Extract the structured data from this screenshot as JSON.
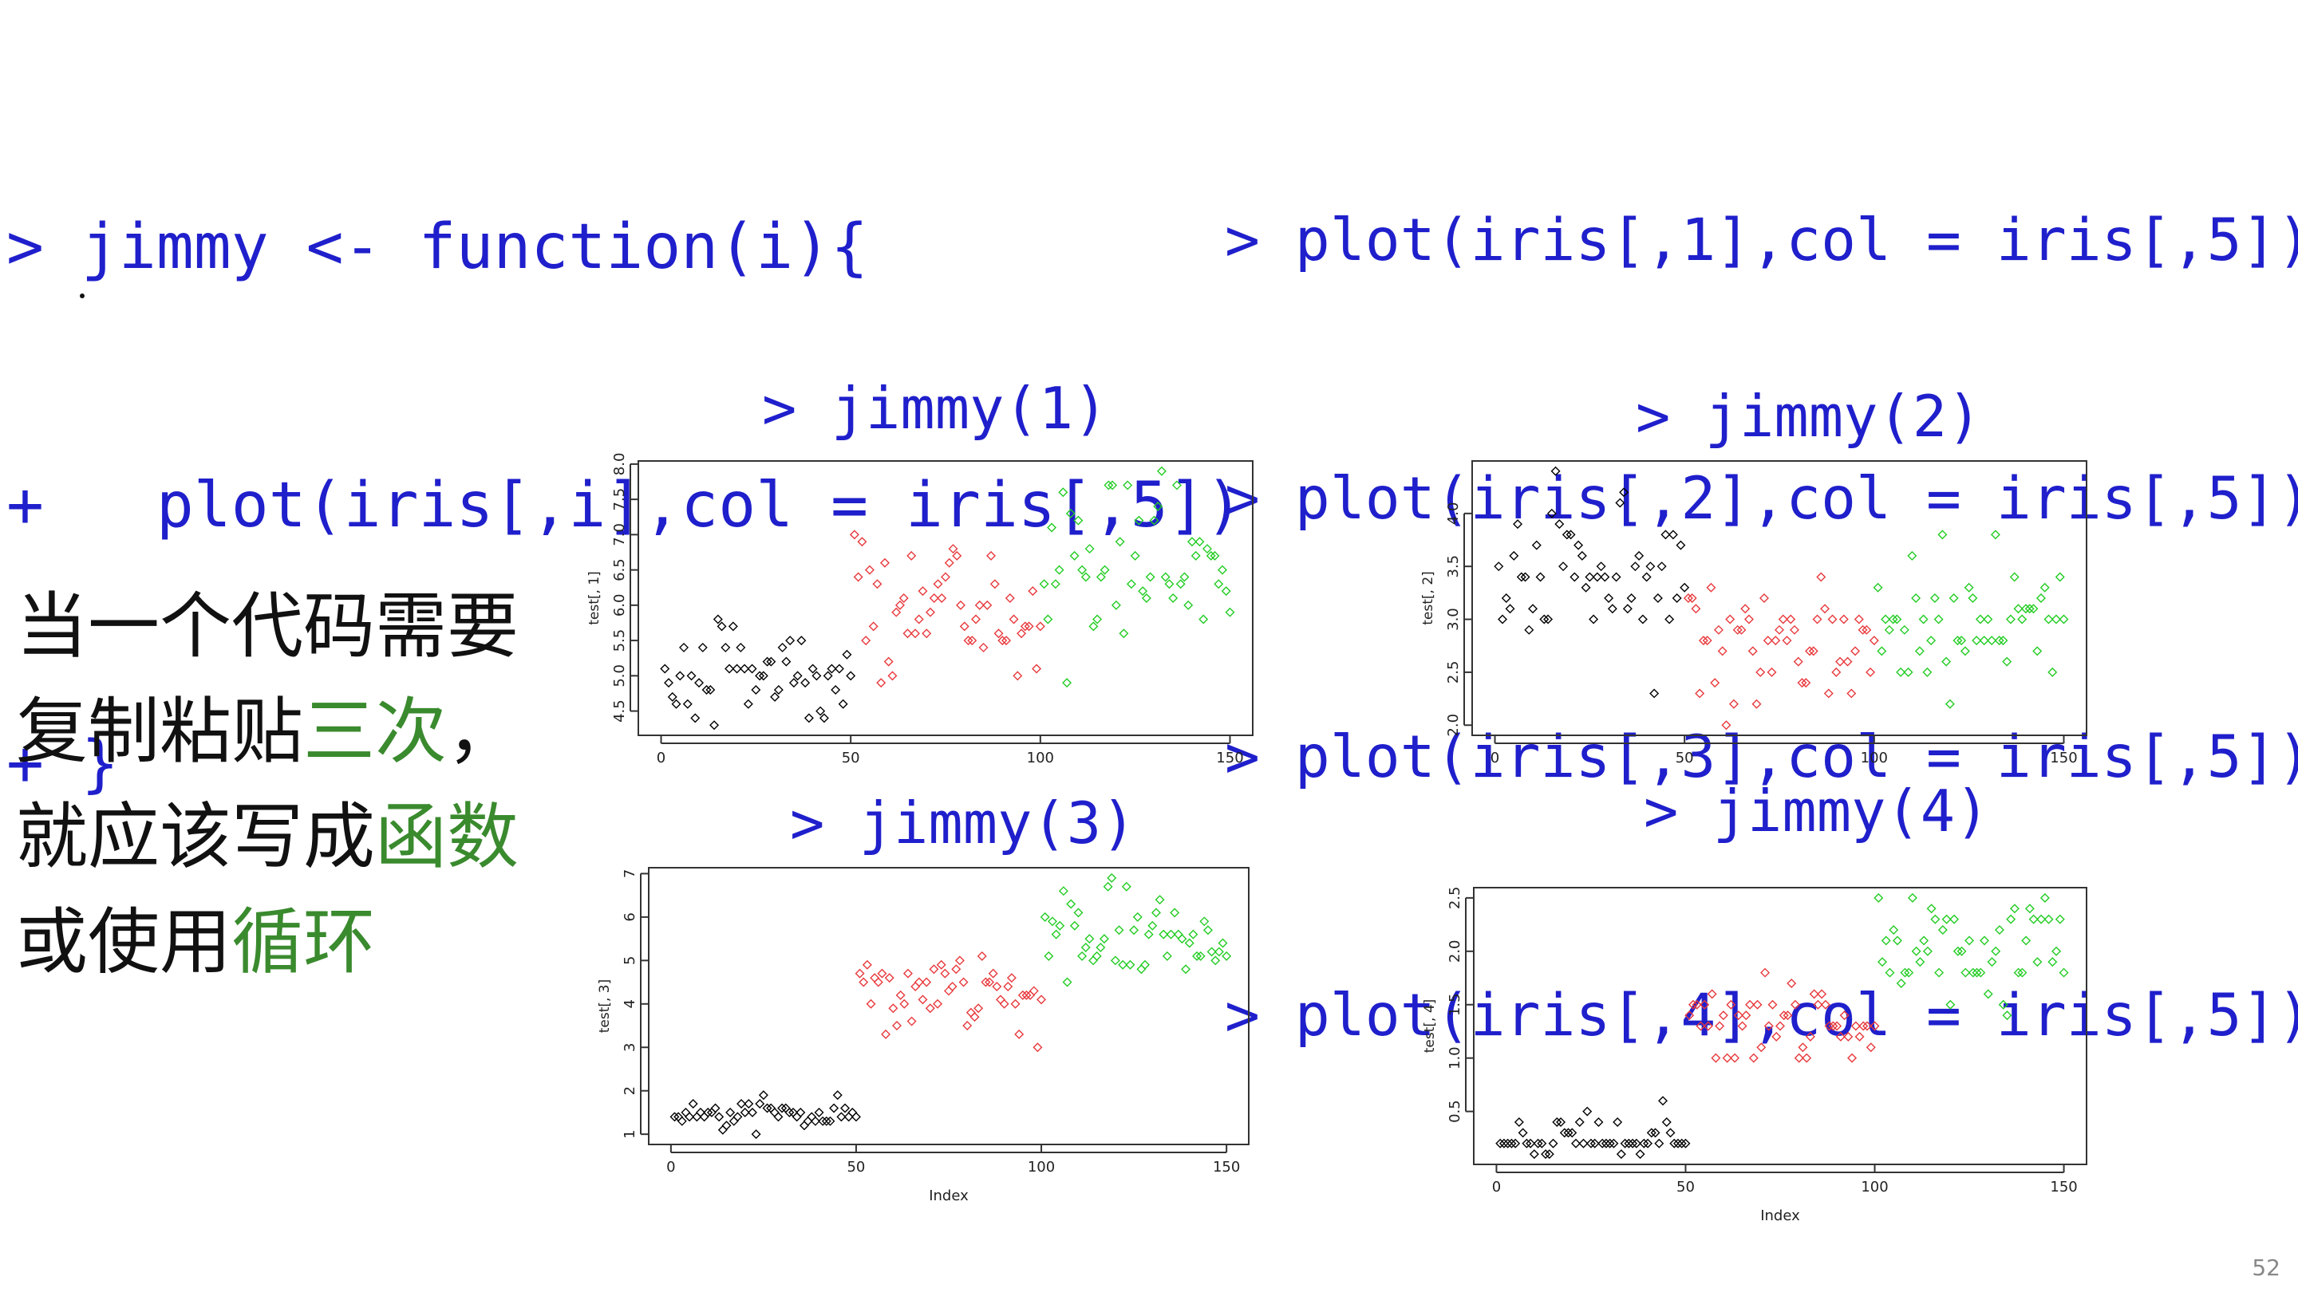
{
  "code_left": {
    "lines": [
      "> jimmy <- function(i){",
      "+   plot(iris[,i],col = iris[,5])",
      "+ }"
    ]
  },
  "code_right": {
    "lines": [
      "> plot(iris[,1],col = iris[,5])",
      "> plot(iris[,2],col = iris[,5])",
      "> plot(iris[,3],col = iris[,5])",
      "> plot(iris[,4],col = iris[,5])"
    ]
  },
  "calls": [
    "> jimmy(1)",
    "> jimmy(2)",
    "> jimmy(3)",
    "> jimmy(4)"
  ],
  "note": {
    "line1": "当一个代码需要",
    "line2_a": "复制粘贴",
    "line2_b": "三次",
    "line2_c": "，",
    "line3_a": "就应该写成",
    "line3_b": "函数",
    "line4_a": "或使用",
    "line4_b": "循环"
  },
  "page_number": "52",
  "colors": {
    "code": "#1f1fcc",
    "highlight": "#3a8a2e",
    "setosa": "#000000",
    "versicolor": "#e8393c",
    "virginica": "#22cc22"
  },
  "chart_data": [
    {
      "type": "scatter",
      "title": "",
      "xlabel": "",
      "ylabel": "test[, 1]",
      "xlim": [
        0,
        150
      ],
      "ylim": [
        4.3,
        7.9
      ],
      "xticks": [
        "0",
        "50",
        "100",
        "150"
      ],
      "yticks": [
        "4.5",
        "5.0",
        "5.5",
        "6.0",
        "6.5",
        "7.0",
        "7.5",
        "8.0"
      ],
      "x_note": "Index 1..150",
      "series": [
        {
          "values": [
            5.1,
            4.9,
            4.7,
            4.6,
            5.0,
            5.4,
            4.6,
            5.0,
            4.4,
            4.9,
            5.4,
            4.8,
            4.8,
            4.3,
            5.8,
            5.7,
            5.4,
            5.1,
            5.7,
            5.1,
            5.4,
            5.1,
            4.6,
            5.1,
            4.8,
            5.0,
            5.0,
            5.2,
            5.2,
            4.7,
            4.8,
            5.4,
            5.2,
            5.5,
            4.9,
            5.0,
            5.5,
            4.9,
            4.4,
            5.1,
            5.0,
            4.5,
            4.4,
            5.0,
            5.1,
            4.8,
            5.1,
            4.6,
            5.3,
            5.0
          ]
        },
        {
          "values": [
            7.0,
            6.4,
            6.9,
            5.5,
            6.5,
            5.7,
            6.3,
            4.9,
            6.6,
            5.2,
            5.0,
            5.9,
            6.0,
            6.1,
            5.6,
            6.7,
            5.6,
            5.8,
            6.2,
            5.6,
            5.9,
            6.1,
            6.3,
            6.1,
            6.4,
            6.6,
            6.8,
            6.7,
            6.0,
            5.7,
            5.5,
            5.5,
            5.8,
            6.0,
            5.4,
            6.0,
            6.7,
            6.3,
            5.6,
            5.5,
            5.5,
            6.1,
            5.8,
            5.0,
            5.6,
            5.7,
            5.7,
            6.2,
            5.1,
            5.7
          ]
        },
        {
          "values": [
            6.3,
            5.8,
            7.1,
            6.3,
            6.5,
            7.6,
            4.9,
            7.3,
            6.7,
            7.2,
            6.5,
            6.4,
            6.8,
            5.7,
            5.8,
            6.4,
            6.5,
            7.7,
            7.7,
            6.0,
            6.9,
            5.6,
            7.7,
            6.3,
            6.7,
            7.2,
            6.2,
            6.1,
            6.4,
            7.2,
            7.4,
            7.9,
            6.4,
            6.3,
            6.1,
            7.7,
            6.3,
            6.4,
            6.0,
            6.9,
            6.7,
            6.9,
            5.8,
            6.8,
            6.7,
            6.7,
            6.3,
            6.5,
            6.2,
            5.9
          ]
        }
      ]
    },
    {
      "type": "scatter",
      "title": "",
      "xlabel": "",
      "ylabel": "test[, 2]",
      "xlim": [
        0,
        150
      ],
      "ylim": [
        2.0,
        4.4
      ],
      "xticks": [
        "0",
        "50",
        "100",
        "150"
      ],
      "yticks": [
        "2.0",
        "2.5",
        "3.0",
        "3.5",
        "4.0"
      ],
      "x_note": "Index 1..150",
      "series": [
        {
          "values": [
            3.5,
            3.0,
            3.2,
            3.1,
            3.6,
            3.9,
            3.4,
            3.4,
            2.9,
            3.1,
            3.7,
            3.4,
            3.0,
            3.0,
            4.0,
            4.4,
            3.9,
            3.5,
            3.8,
            3.8,
            3.4,
            3.7,
            3.6,
            3.3,
            3.4,
            3.0,
            3.4,
            3.5,
            3.4,
            3.2,
            3.1,
            3.4,
            4.1,
            4.2,
            3.1,
            3.2,
            3.5,
            3.6,
            3.0,
            3.4,
            3.5,
            2.3,
            3.2,
            3.5,
            3.8,
            3.0,
            3.8,
            3.2,
            3.7,
            3.3
          ]
        },
        {
          "values": [
            3.2,
            3.2,
            3.1,
            2.3,
            2.8,
            2.8,
            3.3,
            2.4,
            2.9,
            2.7,
            2.0,
            3.0,
            2.2,
            2.9,
            2.9,
            3.1,
            3.0,
            2.7,
            2.2,
            2.5,
            3.2,
            2.8,
            2.5,
            2.8,
            2.9,
            3.0,
            2.8,
            3.0,
            2.9,
            2.6,
            2.4,
            2.4,
            2.7,
            2.7,
            3.0,
            3.4,
            3.1,
            2.3,
            3.0,
            2.5,
            2.6,
            3.0,
            2.6,
            2.3,
            2.7,
            3.0,
            2.9,
            2.9,
            2.5,
            2.8
          ]
        },
        {
          "values": [
            3.3,
            2.7,
            3.0,
            2.9,
            3.0,
            3.0,
            2.5,
            2.9,
            2.5,
            3.6,
            3.2,
            2.7,
            3.0,
            2.5,
            2.8,
            3.2,
            3.0,
            3.8,
            2.6,
            2.2,
            3.2,
            2.8,
            2.8,
            2.7,
            3.3,
            3.2,
            2.8,
            3.0,
            2.8,
            3.0,
            2.8,
            3.8,
            2.8,
            2.8,
            2.6,
            3.0,
            3.4,
            3.1,
            3.0,
            3.1,
            3.1,
            3.1,
            2.7,
            3.2,
            3.3,
            3.0,
            2.5,
            3.0,
            3.4,
            3.0
          ]
        }
      ]
    },
    {
      "type": "scatter",
      "title": "",
      "xlabel": "Index",
      "ylabel": "test[, 3]",
      "xlim": [
        0,
        150
      ],
      "ylim": [
        1.0,
        6.9
      ],
      "xticks": [
        "0",
        "50",
        "100",
        "150"
      ],
      "yticks": [
        "1",
        "2",
        "3",
        "4",
        "5",
        "6",
        "7"
      ],
      "x_note": "Index 1..150",
      "series": [
        {
          "values": [
            1.4,
            1.4,
            1.3,
            1.5,
            1.4,
            1.7,
            1.4,
            1.5,
            1.4,
            1.5,
            1.5,
            1.6,
            1.4,
            1.1,
            1.2,
            1.5,
            1.3,
            1.4,
            1.7,
            1.5,
            1.7,
            1.5,
            1.0,
            1.7,
            1.9,
            1.6,
            1.6,
            1.5,
            1.4,
            1.6,
            1.6,
            1.5,
            1.5,
            1.4,
            1.5,
            1.2,
            1.3,
            1.4,
            1.3,
            1.5,
            1.3,
            1.3,
            1.3,
            1.6,
            1.9,
            1.4,
            1.6,
            1.4,
            1.5,
            1.4
          ]
        },
        {
          "values": [
            4.7,
            4.5,
            4.9,
            4.0,
            4.6,
            4.5,
            4.7,
            3.3,
            4.6,
            3.9,
            3.5,
            4.2,
            4.0,
            4.7,
            3.6,
            4.4,
            4.5,
            4.1,
            4.5,
            3.9,
            4.8,
            4.0,
            4.9,
            4.7,
            4.3,
            4.4,
            4.8,
            5.0,
            4.5,
            3.5,
            3.8,
            3.7,
            3.9,
            5.1,
            4.5,
            4.5,
            4.7,
            4.4,
            4.1,
            4.0,
            4.4,
            4.6,
            4.0,
            3.3,
            4.2,
            4.2,
            4.2,
            4.3,
            3.0,
            4.1
          ]
        },
        {
          "values": [
            6.0,
            5.1,
            5.9,
            5.6,
            5.8,
            6.6,
            4.5,
            6.3,
            5.8,
            6.1,
            5.1,
            5.3,
            5.5,
            5.0,
            5.1,
            5.3,
            5.5,
            6.7,
            6.9,
            5.0,
            5.7,
            4.9,
            6.7,
            4.9,
            5.7,
            6.0,
            4.8,
            4.9,
            5.6,
            5.8,
            6.1,
            6.4,
            5.6,
            5.1,
            5.6,
            6.1,
            5.6,
            5.5,
            4.8,
            5.4,
            5.6,
            5.1,
            5.1,
            5.9,
            5.7,
            5.2,
            5.0,
            5.2,
            5.4,
            5.1
          ]
        }
      ]
    },
    {
      "type": "scatter",
      "title": "",
      "xlabel": "Index",
      "ylabel": "test[, 4]",
      "xlim": [
        0,
        150
      ],
      "ylim": [
        0.1,
        2.5
      ],
      "xticks": [
        "0",
        "50",
        "100",
        "150"
      ],
      "yticks": [
        "0.5",
        "1.0",
        "1.5",
        "2.0",
        "2.5"
      ],
      "x_note": "Index 1..150",
      "series": [
        {
          "values": [
            0.2,
            0.2,
            0.2,
            0.2,
            0.2,
            0.4,
            0.3,
            0.2,
            0.2,
            0.1,
            0.2,
            0.2,
            0.1,
            0.1,
            0.2,
            0.4,
            0.4,
            0.3,
            0.3,
            0.3,
            0.2,
            0.4,
            0.2,
            0.5,
            0.2,
            0.2,
            0.4,
            0.2,
            0.2,
            0.2,
            0.2,
            0.4,
            0.1,
            0.2,
            0.2,
            0.2,
            0.2,
            0.1,
            0.2,
            0.2,
            0.3,
            0.3,
            0.2,
            0.6,
            0.4,
            0.3,
            0.2,
            0.2,
            0.2,
            0.2
          ]
        },
        {
          "values": [
            1.4,
            1.5,
            1.5,
            1.3,
            1.5,
            1.3,
            1.6,
            1.0,
            1.3,
            1.4,
            1.0,
            1.5,
            1.0,
            1.4,
            1.3,
            1.4,
            1.5,
            1.0,
            1.5,
            1.1,
            1.8,
            1.3,
            1.5,
            1.2,
            1.3,
            1.4,
            1.4,
            1.7,
            1.5,
            1.0,
            1.1,
            1.0,
            1.2,
            1.6,
            1.5,
            1.6,
            1.5,
            1.3,
            1.3,
            1.3,
            1.2,
            1.4,
            1.2,
            1.0,
            1.3,
            1.2,
            1.3,
            1.3,
            1.1,
            1.3
          ]
        },
        {
          "values": [
            2.5,
            1.9,
            2.1,
            1.8,
            2.2,
            2.1,
            1.7,
            1.8,
            1.8,
            2.5,
            2.0,
            1.9,
            2.1,
            2.0,
            2.4,
            2.3,
            1.8,
            2.2,
            2.3,
            1.5,
            2.3,
            2.0,
            2.0,
            1.8,
            2.1,
            1.8,
            1.8,
            1.8,
            2.1,
            1.6,
            1.9,
            2.0,
            2.2,
            1.5,
            1.4,
            2.3,
            2.4,
            1.8,
            1.8,
            2.1,
            2.4,
            2.3,
            1.9,
            2.3,
            2.5,
            2.3,
            1.9,
            2.0,
            2.3,
            1.8
          ]
        }
      ]
    }
  ]
}
